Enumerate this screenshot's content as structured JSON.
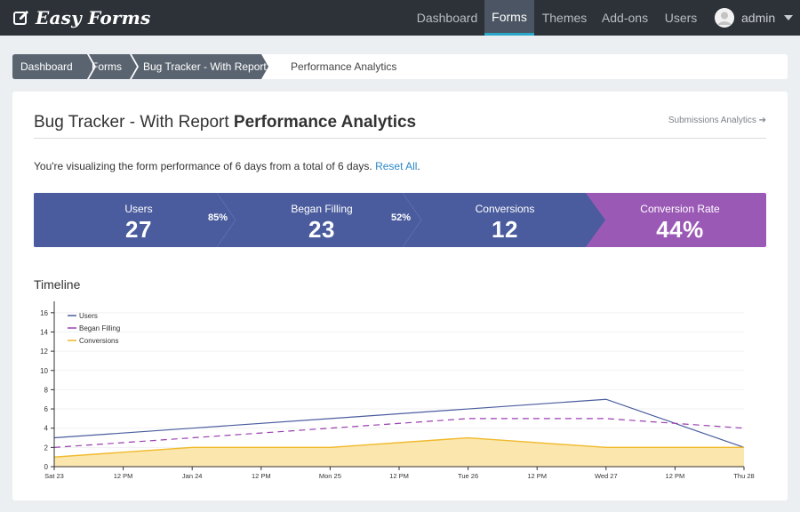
{
  "brand": {
    "name": "Easy Forms",
    "icon": "edit-icon"
  },
  "nav": {
    "items": [
      {
        "label": "Dashboard",
        "active": false
      },
      {
        "label": "Forms",
        "active": true
      },
      {
        "label": "Themes",
        "active": false
      },
      {
        "label": "Add-ons",
        "active": false
      },
      {
        "label": "Users",
        "active": false
      }
    ],
    "user": "admin"
  },
  "breadcrumb": {
    "items": [
      "Dashboard",
      "Forms",
      "Bug Tracker - With Report"
    ],
    "current": "Performance Analytics"
  },
  "page": {
    "title_prefix": "Bug Tracker - With Report",
    "title_main": "Performance Analytics",
    "side_link": "Submissions Analytics",
    "intro_text": "You're visualizing the form performance of 6 days from a total of 6 days.",
    "intro_link": "Reset All"
  },
  "funnel": {
    "stats": [
      {
        "label": "Users",
        "value": "27"
      },
      {
        "label": "Began Filling",
        "value": "23"
      },
      {
        "label": "Conversions",
        "value": "12"
      },
      {
        "label": "Conversion Rate",
        "value": "44%"
      }
    ],
    "rates": [
      "85%",
      "52%"
    ],
    "colors": {
      "primary": "#4a5c9e",
      "rate": "#9b59b6"
    }
  },
  "timeline": {
    "title": "Timeline"
  },
  "chart_data": {
    "type": "line",
    "title": "",
    "xlabel": "",
    "ylabel": "",
    "ylim": [
      0,
      17
    ],
    "y_ticks": [
      0,
      2,
      4,
      6,
      8,
      10,
      12,
      14,
      16
    ],
    "x_ticks": [
      "Sat 23",
      "12 PM",
      "Jan 24",
      "12 PM",
      "Mon 25",
      "12 PM",
      "Tue 26",
      "12 PM",
      "Wed 27",
      "12 PM",
      "Thu 28"
    ],
    "x": [
      0,
      1,
      2,
      3,
      4,
      5
    ],
    "categories": [
      "Sat 23",
      "Jan 24",
      "Mon 25",
      "Tue 26",
      "Wed 27",
      "Thu 28"
    ],
    "grid": true,
    "legend_position": "top-left",
    "series": [
      {
        "name": "Users",
        "values": [
          3,
          4,
          5,
          6,
          7,
          2
        ],
        "color": "#4a5c9e",
        "style": "solid"
      },
      {
        "name": "Began Filling",
        "values": [
          2,
          3,
          4,
          5,
          5,
          4
        ],
        "color": "#9b3fb0",
        "style": "dashed"
      },
      {
        "name": "Conversions",
        "values": [
          1,
          2,
          2,
          3,
          2,
          2
        ],
        "color": "#f0b92a",
        "style": "area"
      }
    ]
  }
}
